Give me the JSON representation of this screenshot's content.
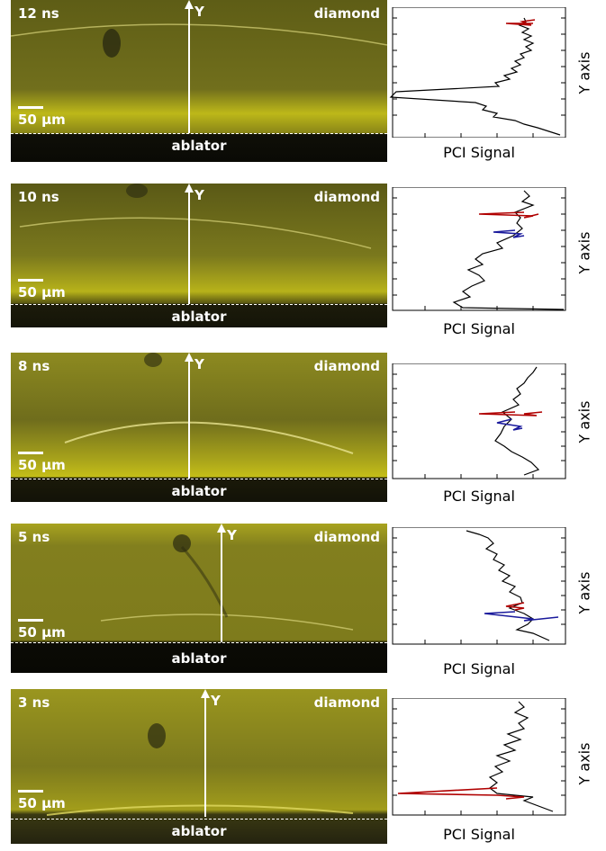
{
  "panels": [
    {
      "time": "12 ns",
      "material": "diamond",
      "scale": "50 µm",
      "region": "ablator",
      "y_arrow": "Y",
      "xlabel": "PCI Signal",
      "ylabel": "Y axis"
    },
    {
      "time": "10 ns",
      "material": "diamond",
      "scale": "50 µm",
      "region": "ablator",
      "y_arrow": "Y",
      "xlabel": "PCI Signal",
      "ylabel": "Y axis"
    },
    {
      "time": "8 ns",
      "material": "diamond",
      "scale": "50 µm",
      "region": "ablator",
      "y_arrow": "Y",
      "xlabel": "PCI Signal",
      "ylabel": "Y axis"
    },
    {
      "time": "5 ns",
      "material": "diamond",
      "scale": "50 µm",
      "region": "ablator",
      "y_arrow": "Y",
      "xlabel": "PCI Signal",
      "ylabel": "Y axis"
    },
    {
      "time": "3 ns",
      "material": "diamond",
      "scale": "50 µm",
      "region": "ablator",
      "y_arrow": "Y",
      "xlabel": "PCI Signal",
      "ylabel": "Y axis"
    }
  ],
  "colors": {
    "image_base": "#6b6a1e",
    "image_bright": "#d8d21c",
    "ablator": "#111108",
    "black_trace": "#000000",
    "red_trace": "#b00000",
    "blue_trace": "#1a1a9c"
  }
}
